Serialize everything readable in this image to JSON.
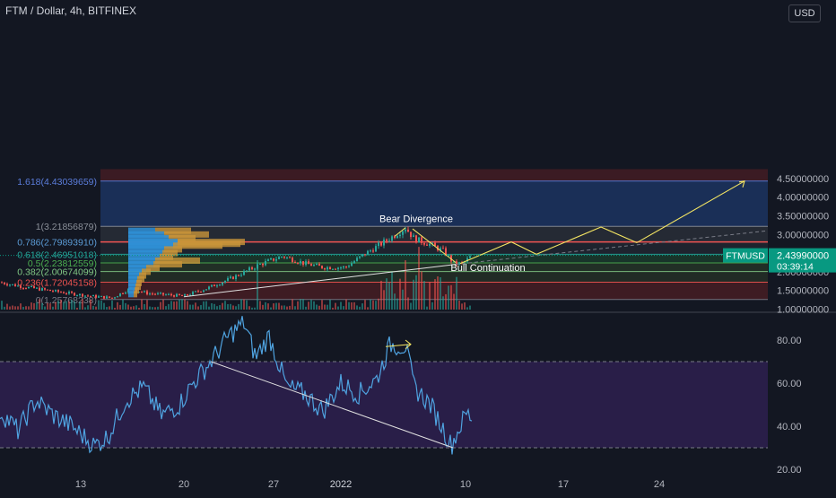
{
  "header": {
    "title": "FTM / Dollar, 4h, BITFINEX",
    "currency_button": "USD"
  },
  "colors": {
    "background": "#131722",
    "fib_blue_zone": "#1e3a6e",
    "fib_red_zone": "#4a1e24",
    "fib_green_zone": "#1a3a2c",
    "fib_gray_zone": "#2a2f3a",
    "up_candle": "#26a69a",
    "down_candle": "#ef5350",
    "rsi_line": "#4fa3e0",
    "rsi_band": "#2c1f4d",
    "annotation_yellow": "#f5e663",
    "price_badge": "#089981"
  },
  "chart_data": [
    {
      "type": "candlestick",
      "title": "FTM / Dollar, 4h, BITFINEX",
      "ylim": [
        0.85,
        4.75
      ],
      "y_ticks": [
        "4.50000000",
        "4.00000000",
        "3.50000000",
        "3.00000000",
        "2.50000000",
        "2.00000000",
        "1.50000000",
        "1.00000000"
      ],
      "y_tick_values": [
        4.5,
        4.0,
        3.5,
        3.0,
        2.5,
        2.0,
        1.5,
        1.0
      ],
      "x_ticks": [
        "13",
        "20",
        "27",
        "2022",
        "10",
        "17",
        "24"
      ],
      "current_price": {
        "symbol": "FTMUSD",
        "value": "2.43990000",
        "countdown": "03:39:14",
        "price": 2.4399
      },
      "fib_levels": [
        {
          "label": "1.618(4.43039659)",
          "value": 4.43039659,
          "color": "#5b7ddb"
        },
        {
          "label": "1(3.21856879)",
          "value": 3.21856879,
          "color": "#8a8f98"
        },
        {
          "label": "0.786(2.79893910)",
          "value": 2.7989391,
          "color": "#5b9bd5"
        },
        {
          "label": "0.618(2.46951018)",
          "value": 2.46951018,
          "color": "#26a69a"
        },
        {
          "label": "0.5(2.23812559)",
          "value": 2.23812559,
          "color": "#4caf50"
        },
        {
          "label": "0.382(2.00674099)",
          "value": 2.00674099,
          "color": "#81c784"
        },
        {
          "label": "0.236(1.72045158)",
          "value": 1.72045158,
          "color": "#ef5350"
        },
        {
          "label": "0(1.25768238)",
          "value": 1.25768238,
          "color": "#787b86"
        }
      ],
      "annotations": [
        "Bear Divergence",
        "Bull Continuation"
      ]
    },
    {
      "type": "line",
      "name_shown": "",
      "ylim": [
        12,
        96
      ],
      "y_ticks": [
        "80.00",
        "60.00",
        "40.00",
        "20.00"
      ],
      "y_tick_values": [
        80,
        60,
        40,
        20
      ],
      "overbought": 70,
      "oversold": 30
    }
  ]
}
